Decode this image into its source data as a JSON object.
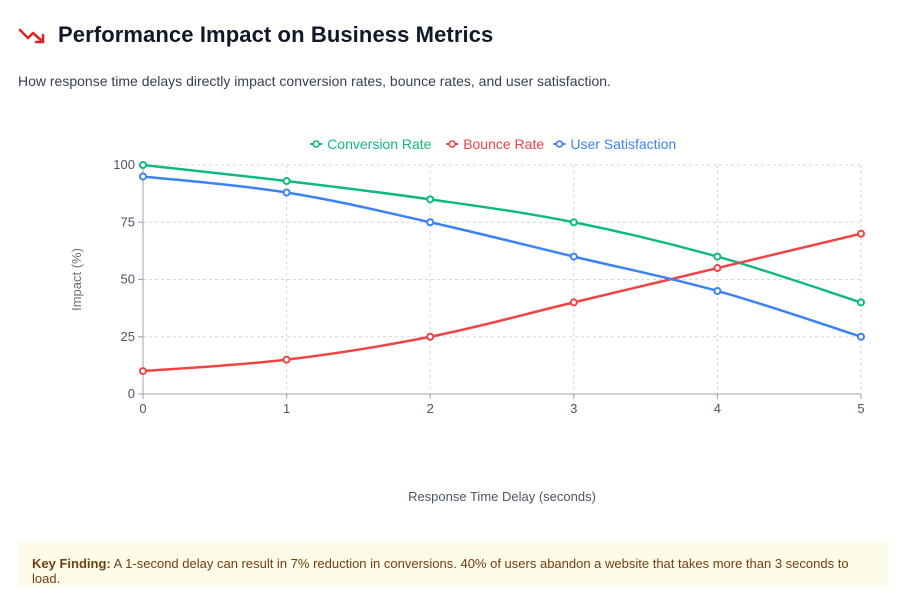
{
  "header": {
    "title": "Performance Impact on Business Metrics",
    "icon": "trending-down-icon",
    "icon_color": "#dc2626",
    "subtitle": "How response time delays directly impact conversion rates, bounce rates, and user satisfaction."
  },
  "chart_data": {
    "type": "line",
    "x": [
      0,
      1,
      2,
      3,
      4,
      5
    ],
    "xticks": [
      "0",
      "1",
      "2",
      "3",
      "4",
      "5"
    ],
    "yticks": [
      "0",
      "25",
      "50",
      "75",
      "100"
    ],
    "xlabel": "Response Time Delay (seconds)",
    "ylabel": "Impact (%)",
    "xlim": [
      0,
      5
    ],
    "ylim": [
      0,
      100
    ],
    "grid": true,
    "legend_position": "top-center",
    "series": [
      {
        "name": "Conversion Rate",
        "color": "#10b981",
        "values": [
          100,
          93,
          85,
          75,
          60,
          40
        ]
      },
      {
        "name": "Bounce Rate",
        "color": "#ef4444",
        "values": [
          10,
          15,
          25,
          40,
          55,
          70
        ]
      },
      {
        "name": "User Satisfaction",
        "color": "#3b82f6",
        "values": [
          95,
          88,
          75,
          60,
          45,
          25
        ]
      }
    ]
  },
  "finding": {
    "label": "Key Finding:",
    "text": " A 1-second delay can result in 7% reduction in conversions. 40% of users abandon a website that takes more than 3 seconds to load."
  }
}
